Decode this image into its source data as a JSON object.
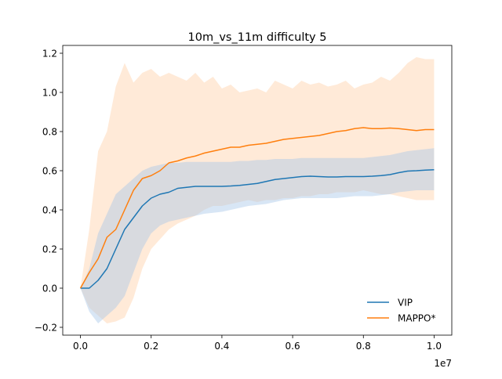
{
  "chart_data": {
    "type": "line",
    "title": "10m_vs_11m difficulty 5",
    "xlabel": "",
    "ylabel": "",
    "x_offset_text": "1e7",
    "xlim": [
      -0.05,
      1.05
    ],
    "ylim": [
      -0.24,
      1.24
    ],
    "xticks": [
      0.0,
      0.2,
      0.4,
      0.6,
      0.8,
      1.0
    ],
    "xtick_labels": [
      "0.0",
      "0.2",
      "0.4",
      "0.6",
      "0.8",
      "1.0"
    ],
    "yticks": [
      -0.2,
      0.0,
      0.2,
      0.4,
      0.6,
      0.8,
      1.0,
      1.2
    ],
    "ytick_labels": [
      "−0.2",
      "0.0",
      "0.2",
      "0.4",
      "0.6",
      "0.8",
      "1.0",
      "1.2"
    ],
    "grid": false,
    "legend_position": "lower-right",
    "x": [
      0.0,
      0.025,
      0.05,
      0.075,
      0.1,
      0.125,
      0.15,
      0.175,
      0.2,
      0.225,
      0.25,
      0.275,
      0.3,
      0.325,
      0.35,
      0.375,
      0.4,
      0.425,
      0.45,
      0.475,
      0.5,
      0.525,
      0.55,
      0.575,
      0.6,
      0.625,
      0.65,
      0.675,
      0.7,
      0.725,
      0.75,
      0.775,
      0.8,
      0.825,
      0.85,
      0.875,
      0.9,
      0.925,
      0.95,
      0.975,
      1.0
    ],
    "series": [
      {
        "name": "VIP",
        "color": "#1f77b4",
        "band_color": "#a8c8e8",
        "values": [
          0.0,
          0.0,
          0.04,
          0.1,
          0.2,
          0.3,
          0.36,
          0.42,
          0.46,
          0.48,
          0.49,
          0.51,
          0.515,
          0.52,
          0.52,
          0.52,
          0.52,
          0.522,
          0.525,
          0.53,
          0.535,
          0.545,
          0.555,
          0.56,
          0.565,
          0.57,
          0.572,
          0.57,
          0.568,
          0.568,
          0.57,
          0.57,
          0.57,
          0.572,
          0.575,
          0.58,
          0.59,
          0.598,
          0.6,
          0.603,
          0.605
        ],
        "upper": [
          0.0,
          0.1,
          0.28,
          0.38,
          0.48,
          0.52,
          0.56,
          0.6,
          0.62,
          0.63,
          0.64,
          0.64,
          0.645,
          0.645,
          0.645,
          0.645,
          0.645,
          0.645,
          0.65,
          0.65,
          0.655,
          0.655,
          0.66,
          0.66,
          0.66,
          0.665,
          0.665,
          0.665,
          0.665,
          0.665,
          0.665,
          0.665,
          0.665,
          0.67,
          0.675,
          0.68,
          0.69,
          0.7,
          0.705,
          0.71,
          0.715
        ],
        "lower": [
          0.0,
          -0.12,
          -0.18,
          -0.14,
          -0.1,
          -0.04,
          0.08,
          0.2,
          0.28,
          0.32,
          0.34,
          0.35,
          0.36,
          0.37,
          0.38,
          0.385,
          0.39,
          0.4,
          0.41,
          0.42,
          0.425,
          0.43,
          0.44,
          0.45,
          0.455,
          0.46,
          0.46,
          0.46,
          0.46,
          0.46,
          0.465,
          0.47,
          0.47,
          0.47,
          0.475,
          0.48,
          0.49,
          0.495,
          0.5,
          0.5,
          0.5
        ]
      },
      {
        "name": "MAPPO*",
        "color": "#ff7f0e",
        "band_color": "#ffd9b8",
        "values": [
          0.0,
          0.08,
          0.15,
          0.26,
          0.3,
          0.4,
          0.5,
          0.56,
          0.575,
          0.6,
          0.64,
          0.65,
          0.665,
          0.675,
          0.69,
          0.7,
          0.71,
          0.72,
          0.72,
          0.73,
          0.735,
          0.74,
          0.75,
          0.76,
          0.765,
          0.77,
          0.775,
          0.78,
          0.79,
          0.8,
          0.805,
          0.815,
          0.82,
          0.815,
          0.815,
          0.818,
          0.815,
          0.81,
          0.805,
          0.81,
          0.81
        ],
        "upper": [
          0.0,
          0.3,
          0.7,
          0.8,
          1.03,
          1.15,
          1.05,
          1.1,
          1.12,
          1.08,
          1.1,
          1.08,
          1.06,
          1.1,
          1.05,
          1.08,
          1.02,
          1.04,
          1.0,
          1.01,
          1.02,
          1.0,
          1.06,
          1.04,
          1.02,
          1.06,
          1.04,
          1.05,
          1.03,
          1.04,
          1.06,
          1.02,
          1.04,
          1.05,
          1.08,
          1.06,
          1.1,
          1.15,
          1.18,
          1.17,
          1.17
        ],
        "lower": [
          0.0,
          -0.1,
          -0.14,
          -0.18,
          -0.17,
          -0.15,
          -0.05,
          0.1,
          0.2,
          0.25,
          0.3,
          0.33,
          0.35,
          0.37,
          0.4,
          0.42,
          0.42,
          0.43,
          0.44,
          0.45,
          0.44,
          0.45,
          0.45,
          0.46,
          0.46,
          0.47,
          0.47,
          0.48,
          0.48,
          0.49,
          0.49,
          0.49,
          0.5,
          0.49,
          0.48,
          0.48,
          0.47,
          0.46,
          0.45,
          0.45,
          0.45
        ]
      }
    ]
  }
}
